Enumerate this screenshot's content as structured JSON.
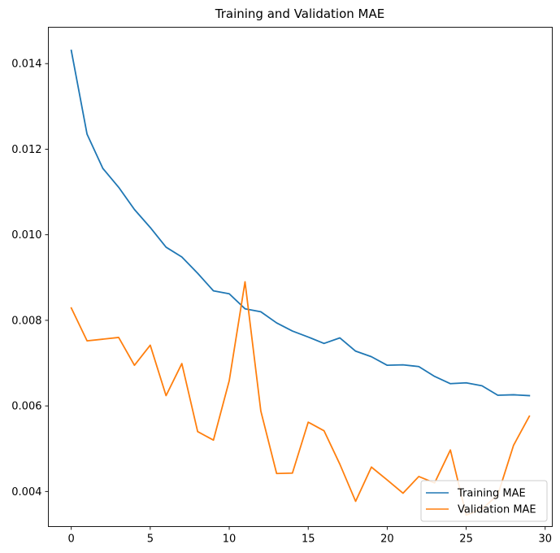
{
  "chart_data": {
    "type": "line",
    "title": "Training and Validation MAE",
    "xlabel": "",
    "ylabel": "",
    "xlim": [
      -1.45,
      30.45
    ],
    "ylim": [
      0.00318,
      0.01485
    ],
    "x_ticks": [
      0,
      5,
      10,
      15,
      20,
      25,
      30
    ],
    "y_ticks": [
      0.004,
      0.006,
      0.008,
      0.01,
      0.012,
      0.014
    ],
    "y_tick_labels": [
      "0.004",
      "0.006",
      "0.008",
      "0.010",
      "0.012",
      "0.014"
    ],
    "x_tick_labels": [
      "0",
      "5",
      "10",
      "15",
      "20",
      "25",
      "30"
    ],
    "grid": false,
    "legend_position": "lower-right",
    "x": [
      0,
      1,
      2,
      3,
      4,
      5,
      6,
      7,
      8,
      9,
      10,
      11,
      12,
      13,
      14,
      15,
      16,
      17,
      18,
      19,
      20,
      21,
      22,
      23,
      24,
      25,
      26,
      27,
      28,
      29
    ],
    "series": [
      {
        "name": "Training MAE",
        "color": "#1f77b4",
        "values": [
          0.01431,
          0.01235,
          0.01155,
          0.01111,
          0.01059,
          0.01017,
          0.00971,
          0.00948,
          0.0091,
          0.00869,
          0.00862,
          0.00827,
          0.0082,
          0.00794,
          0.00775,
          0.00761,
          0.00746,
          0.00759,
          0.00728,
          0.00715,
          0.00695,
          0.00696,
          0.00692,
          0.00669,
          0.00652,
          0.00654,
          0.00647,
          0.00625,
          0.00626,
          0.00624
        ]
      },
      {
        "name": "Validation MAE",
        "color": "#ff7f0e",
        "values": [
          0.00829,
          0.00752,
          0.00756,
          0.0076,
          0.00695,
          0.00742,
          0.00624,
          0.00699,
          0.0054,
          0.0052,
          0.00659,
          0.0089,
          0.00588,
          0.00442,
          0.00443,
          0.00562,
          0.00542,
          0.00464,
          0.00377,
          0.00457,
          0.00427,
          0.00396,
          0.00435,
          0.0042,
          0.00497,
          0.00345,
          0.00359,
          0.00392,
          0.00508,
          0.00576
        ]
      }
    ]
  }
}
